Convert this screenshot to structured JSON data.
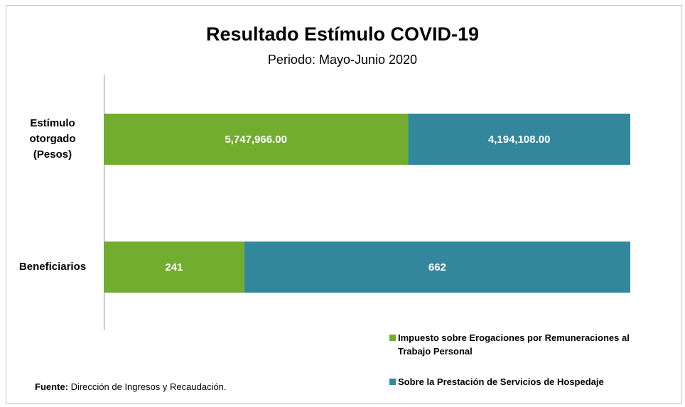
{
  "chart_data": {
    "type": "bar",
    "orientation": "horizontal",
    "stacking": "percent",
    "title": "Resultado Estímulo COVID-19",
    "subtitle": "Periodo: Mayo-Junio 2020",
    "categories": [
      "Estímulo otorgado (Pesos)",
      "Beneficiarios"
    ],
    "series": [
      {
        "name": "Impuesto sobre Erogaciones por Remuneraciones al Trabajo Personal",
        "color": "#72ad2f",
        "values": [
          5747966,
          241
        ],
        "value_labels": [
          "5,747,966.00",
          "241"
        ]
      },
      {
        "name": "Sobre la Prestación de Servicios de Hospedaje",
        "color": "#32879c",
        "values": [
          4194108,
          662
        ],
        "value_labels": [
          "4,194,108.00",
          "662"
        ]
      }
    ],
    "legend": "bottom-right",
    "source": {
      "label": "Fuente:",
      "text": "Dirección de Ingresos y Recaudación."
    }
  }
}
